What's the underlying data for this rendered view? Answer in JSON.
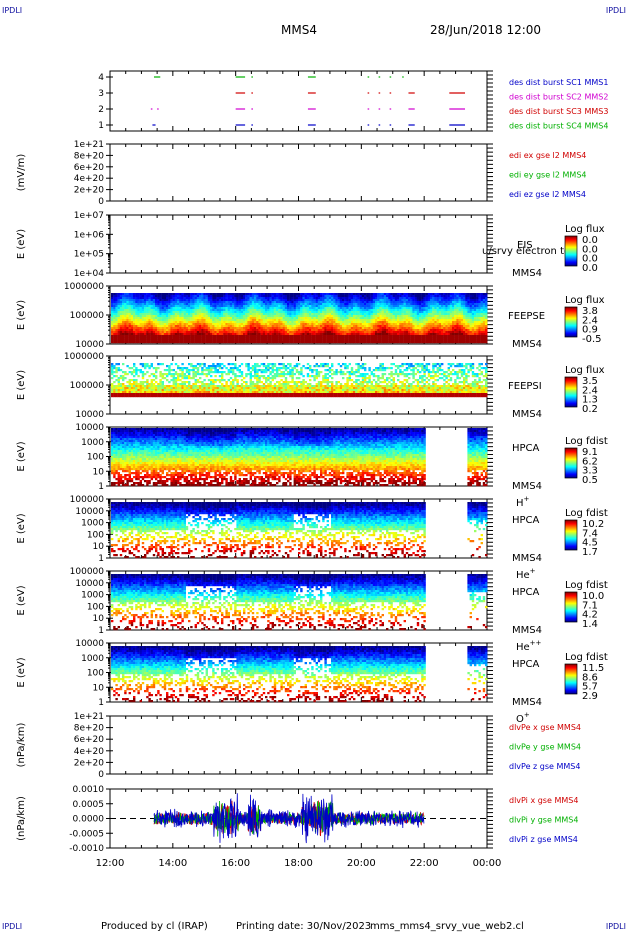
{
  "corners": {
    "tl": "IPDLI",
    "tr": "IPDLI",
    "bl": "IPDLI",
    "br": "IPDLI"
  },
  "header": {
    "spacecraft": "MMS4",
    "datetime": "28/Jun/2018 12:00"
  },
  "footer": {
    "produced_by": "Produced by cl (IRAP)",
    "printing_date": "Printing date: 30/Nov/2023",
    "script": "mms_mms4_srvy_vue_web2.cl"
  },
  "colors": {
    "red": "#d00000",
    "green": "#00b000",
    "blue": "#0000c8",
    "magenta": "#d000d0",
    "dashed": "#000000"
  },
  "chart_data": [
    {
      "type": "line",
      "panel": "burst",
      "yticks": [
        "1",
        "2",
        "3",
        "4"
      ],
      "ylim": [
        0.5,
        4.5
      ],
      "labels": [
        {
          "text": "des dist burst SC1 MMS1",
          "color": "#0000c8"
        },
        {
          "text": "des dist burst SC2 MMS2",
          "color": "#d000d0"
        },
        {
          "text": "des dist burst SC3 MMS3",
          "color": "#d00000"
        },
        {
          "text": "des dist burst SC4 MMS4",
          "color": "#00b000"
        }
      ],
      "series": [
        {
          "level": 4,
          "color": "#00b000",
          "segments": [
            [
              13.4,
              13.6
            ],
            [
              16.0,
              16.3
            ],
            [
              16.5,
              16.55
            ],
            [
              18.3,
              18.55
            ],
            [
              20.2,
              20.25
            ],
            [
              20.55,
              20.6
            ],
            [
              20.9,
              20.95
            ],
            [
              21.3,
              21.35
            ]
          ]
        },
        {
          "level": 3,
          "color": "#d00000",
          "segments": [
            [
              16.0,
              16.3
            ],
            [
              16.5,
              16.55
            ],
            [
              18.3,
              18.55
            ],
            [
              20.2,
              20.25
            ],
            [
              20.55,
              20.6
            ],
            [
              20.9,
              20.95
            ],
            [
              21.5,
              21.7
            ],
            [
              22.8,
              23.3
            ]
          ]
        },
        {
          "level": 2,
          "color": "#d000d0",
          "segments": [
            [
              13.3,
              13.35
            ],
            [
              13.5,
              13.55
            ],
            [
              16.0,
              16.3
            ],
            [
              16.5,
              16.55
            ],
            [
              18.3,
              18.55
            ],
            [
              20.2,
              20.25
            ],
            [
              20.55,
              20.6
            ],
            [
              20.9,
              20.95
            ],
            [
              21.5,
              21.7
            ],
            [
              22.8,
              23.3
            ]
          ]
        },
        {
          "level": 1,
          "color": "#0000c8",
          "segments": [
            [
              13.35,
              13.45
            ],
            [
              16.0,
              16.3
            ],
            [
              16.5,
              16.55
            ],
            [
              18.3,
              18.55
            ],
            [
              20.2,
              20.25
            ],
            [
              20.55,
              20.6
            ],
            [
              20.9,
              20.95
            ],
            [
              21.5,
              21.7
            ],
            [
              22.8,
              23.3
            ]
          ]
        }
      ]
    },
    {
      "type": "line",
      "panel": "edi",
      "ylabel": "(mV/m)",
      "yticks": [
        "1e+21",
        "8e+20",
        "6e+20",
        "4e+20",
        "2e+20",
        "0"
      ],
      "ylim": [
        0,
        1e+21
      ],
      "dashed_zero": true,
      "labels": [
        {
          "text": "edi ex gse l2 MMS4",
          "color": "#d00000"
        },
        {
          "text": "edi ey gse l2 MMS4",
          "color": "#00b000"
        },
        {
          "text": "edi ez gse l2 MMS4",
          "color": "#0000c8"
        }
      ]
    },
    {
      "type": "heatmap",
      "panel": "eis",
      "ylabel": "E (eV)",
      "yticks": [
        "1e+07",
        "1e+06",
        "1e+05",
        "1e+04"
      ],
      "ylim": [
        10000,
        10000000
      ],
      "log": true,
      "instrument": "EIS",
      "species": "u/srvy electron to",
      "spacecraft": "MMS4",
      "colorbar": {
        "title": "Log flux",
        "ticks": [
          "0.0",
          "0.0",
          "0.0",
          "0.0"
        ]
      },
      "empty": true
    },
    {
      "type": "heatmap",
      "panel": "feepse",
      "ylabel": "E (eV)",
      "yticks": [
        "1000000",
        "100000",
        "10000"
      ],
      "ylim": [
        10000,
        1000000
      ],
      "log": true,
      "instrument": "FEEPSE",
      "spacecraft": "MMS4",
      "colorbar": {
        "title": "Log flux",
        "ticks": [
          "3.8",
          "2.4",
          "0.9",
          "-0.5"
        ]
      },
      "coverage": [
        [
          12.0,
          24.0
        ]
      ]
    },
    {
      "type": "heatmap",
      "panel": "feepsi",
      "ylabel": "E (eV)",
      "yticks": [
        "1000000",
        "100000",
        "10000"
      ],
      "ylim": [
        10000,
        1000000
      ],
      "log": true,
      "instrument": "FEEPSI",
      "spacecraft": "MMS4",
      "colorbar": {
        "title": "Log flux",
        "ticks": [
          "3.5",
          "2.4",
          "1.3",
          "0.2"
        ]
      },
      "coverage": [
        [
          12.0,
          24.0
        ]
      ]
    },
    {
      "type": "heatmap",
      "panel": "hpca_h",
      "ylabel": "E (eV)",
      "yticks": [
        "10000",
        "1000",
        "100",
        "10",
        "1"
      ],
      "ylim": [
        1,
        40000
      ],
      "log": true,
      "instrument": "HPCA",
      "spacecraft": "MMS4",
      "ion": "H",
      "ion_charge": "+",
      "colorbar": {
        "title": "Log fdist",
        "ticks": [
          "9.1",
          "6.2",
          "3.3",
          "0.5"
        ]
      },
      "coverage": [
        [
          12.0,
          22.0
        ],
        [
          23.35,
          24.0
        ]
      ]
    },
    {
      "type": "heatmap",
      "panel": "hpca_he1",
      "ylabel": "E (eV)",
      "yticks": [
        "100000",
        "10000",
        "1000",
        "100",
        "10",
        "1"
      ],
      "ylim": [
        1,
        100000
      ],
      "log": true,
      "instrument": "HPCA",
      "spacecraft": "MMS4",
      "ion": "He",
      "ion_charge": "+",
      "colorbar": {
        "title": "Log fdist",
        "ticks": [
          "10.2",
          "7.4",
          "4.5",
          "1.7"
        ]
      },
      "coverage": [
        [
          12.0,
          22.0
        ],
        [
          23.35,
          24.0
        ]
      ]
    },
    {
      "type": "heatmap",
      "panel": "hpca_he2",
      "ylabel": "E (eV)",
      "yticks": [
        "100000",
        "10000",
        "1000",
        "100",
        "10",
        "1"
      ],
      "ylim": [
        1,
        100000
      ],
      "log": true,
      "instrument": "HPCA",
      "spacecraft": "MMS4",
      "ion": "He",
      "ion_charge": "++",
      "colorbar": {
        "title": "Log fdist",
        "ticks": [
          "10.0",
          "7.1",
          "4.2",
          "1.4"
        ]
      },
      "coverage": [
        [
          12.0,
          22.0
        ],
        [
          23.35,
          24.0
        ]
      ]
    },
    {
      "type": "heatmap",
      "panel": "hpca_o",
      "ylabel": "E (eV)",
      "yticks": [
        "10000",
        "1000",
        "100",
        "10",
        "1"
      ],
      "ylim": [
        1,
        40000
      ],
      "log": true,
      "instrument": "HPCA",
      "spacecraft": "MMS4",
      "ion": "O",
      "ion_charge": "+",
      "colorbar": {
        "title": "Log fdist",
        "ticks": [
          "11.5",
          "8.6",
          "5.7",
          "2.9"
        ]
      },
      "coverage": [
        [
          12.0,
          22.0
        ],
        [
          23.35,
          24.0
        ]
      ]
    },
    {
      "type": "line",
      "panel": "dlvpe",
      "ylabel": "(nPa/km)",
      "yticks": [
        "1e+21",
        "8e+20",
        "6e+20",
        "4e+20",
        "2e+20",
        "0"
      ],
      "ylim": [
        0,
        1e+21
      ],
      "dashed_zero": true,
      "labels": [
        {
          "text": "dlvPe x gse MMS4",
          "color": "#d00000"
        },
        {
          "text": "dlvPe y gse MMS4",
          "color": "#00b000"
        },
        {
          "text": "dlvPe z gse MMS4",
          "color": "#0000c8"
        }
      ]
    },
    {
      "type": "line",
      "panel": "dlvpi",
      "ylabel": "(nPa/km)",
      "yticks": [
        "0.0010",
        "0.0005",
        "0.0000",
        "-0.0005",
        "-0.0010"
      ],
      "ylim": [
        -0.0014,
        0.0014
      ],
      "dashed_zero": true,
      "labels": [
        {
          "text": "dlvPi x gse MMS4",
          "color": "#d00000"
        },
        {
          "text": "dlvPi y gse MMS4",
          "color": "#00b000"
        },
        {
          "text": "dlvPi z gse MMS4",
          "color": "#0000c8"
        }
      ],
      "coverage": [
        [
          13.4,
          22.0
        ]
      ]
    }
  ],
  "xaxis": {
    "ticks": [
      "12:00",
      "14:00",
      "16:00",
      "18:00",
      "20:00",
      "22:00",
      "00:00"
    ],
    "range_hours": [
      12,
      24
    ]
  }
}
